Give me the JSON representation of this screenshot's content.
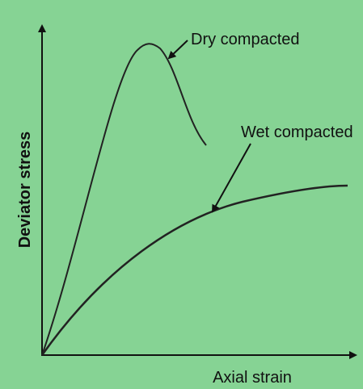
{
  "axes": {
    "y_label": "Deviator stress",
    "x_label": "Axial strain"
  },
  "curves": [
    {
      "label": "Dry compacted"
    },
    {
      "label": "Wet compacted"
    }
  ]
}
